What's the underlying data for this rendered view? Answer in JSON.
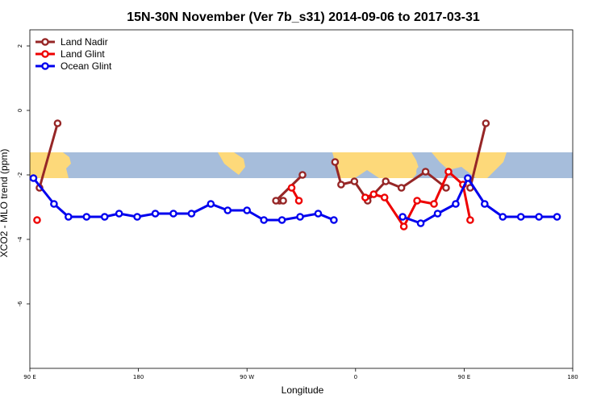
{
  "chart_data": {
    "type": "line",
    "title": "15N-30N November (Ver 7b_s31)   2014-09-06 to 2017-03-31",
    "xlabel": "Longitude",
    "ylabel": "XCO2 - MLO trend (ppm)",
    "xlim": [
      90,
      540
    ],
    "ylim": [
      -8,
      2.5
    ],
    "x_ticks": [
      {
        "value": 90,
        "label": "90 E"
      },
      {
        "value": 180,
        "label": "180"
      },
      {
        "value": 270,
        "label": "90 W"
      },
      {
        "value": 360,
        "label": "0"
      },
      {
        "value": 450,
        "label": "90 E"
      },
      {
        "value": 540,
        "label": "180"
      }
    ],
    "y_ticks": [
      {
        "value": 2,
        "label": "2"
      },
      {
        "value": 0,
        "label": "0"
      },
      {
        "value": -2,
        "label": "-2"
      },
      {
        "value": -4,
        "label": "-4"
      },
      {
        "value": -6,
        "label": "-6"
      }
    ],
    "map_band": {
      "ymin": -2.1,
      "ymax": -1.3,
      "ocean_color": "#a6bddb",
      "land_color": "#fdd97a"
    },
    "legend_position": "top-left",
    "series": [
      {
        "name": "Land Nadir",
        "color": "#962626",
        "segments": [
          [
            [
              98,
              -2.4
            ],
            [
              113,
              -0.4
            ]
          ],
          [
            [
              297,
              -2.8
            ],
            [
              300,
              -2.8
            ]
          ],
          [
            [
              294,
              -2.8
            ],
            [
              316,
              -2.0
            ]
          ],
          [
            [
              455,
              -2.4
            ],
            [
              468,
              -0.4
            ]
          ],
          [
            [
              343,
              -1.6
            ],
            [
              348,
              -2.3
            ],
            [
              359,
              -2.2
            ],
            [
              370,
              -2.8
            ],
            [
              385,
              -2.2
            ],
            [
              398,
              -2.4
            ],
            [
              418,
              -1.9
            ],
            [
              435,
              -2.4
            ]
          ]
        ]
      },
      {
        "name": "Land Glint",
        "color": "#ee0000",
        "segments": [
          [
            [
              96,
              -3.4
            ]
          ],
          [
            [
              307,
              -2.4
            ],
            [
              313,
              -2.8
            ]
          ],
          [
            [
              368,
              -2.7
            ],
            [
              375,
              -2.6
            ],
            [
              384,
              -2.7
            ],
            [
              400,
              -3.6
            ],
            [
              411,
              -2.8
            ],
            [
              425,
              -2.9
            ],
            [
              437,
              -1.9
            ],
            [
              449,
              -2.3
            ],
            [
              455,
              -3.4
            ]
          ]
        ]
      },
      {
        "name": "Ocean Glint",
        "color": "#0000ee",
        "segments": [
          [
            [
              93,
              -2.1
            ],
            [
              110,
              -2.9
            ],
            [
              122,
              -3.3
            ],
            [
              137,
              -3.3
            ],
            [
              152,
              -3.3
            ],
            [
              164,
              -3.2
            ],
            [
              179,
              -3.3
            ],
            [
              194,
              -3.2
            ],
            [
              209,
              -3.2
            ],
            [
              224,
              -3.2
            ],
            [
              240,
              -2.9
            ],
            [
              254,
              -3.1
            ],
            [
              270,
              -3.1
            ],
            [
              284,
              -3.4
            ],
            [
              299,
              -3.4
            ],
            [
              314,
              -3.3
            ],
            [
              329,
              -3.2
            ],
            [
              342,
              -3.4
            ]
          ],
          [
            [
              399,
              -3.3
            ],
            [
              414,
              -3.5
            ],
            [
              428,
              -3.2
            ],
            [
              443,
              -2.9
            ],
            [
              453,
              -2.1
            ],
            [
              467,
              -2.9
            ],
            [
              482,
              -3.3
            ],
            [
              497,
              -3.3
            ],
            [
              512,
              -3.3
            ],
            [
              527,
              -3.3
            ]
          ]
        ]
      }
    ]
  }
}
